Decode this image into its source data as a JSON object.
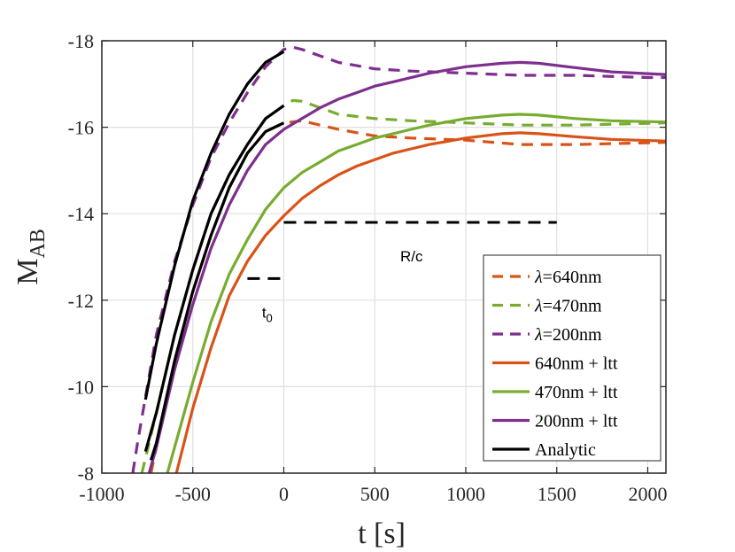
{
  "chart_data": {
    "type": "line",
    "xlabel": "t [s]",
    "ylabel_main": "M",
    "ylabel_sub": "AB",
    "xlim": [
      -1000,
      2100
    ],
    "ylim": [
      -18,
      -8
    ],
    "y_reversed": true,
    "grid": true,
    "x_ticks": [
      -1000,
      -500,
      0,
      500,
      1000,
      1500,
      2000
    ],
    "y_ticks": [
      -18,
      -16,
      -14,
      -12,
      -10,
      -8
    ],
    "x_tick_labels": [
      "-1000",
      "-500",
      "0",
      "500",
      "1000",
      "1500",
      "2000"
    ],
    "y_tick_labels": [
      "-18",
      "-16",
      "-14",
      "-12",
      "-10",
      "-8"
    ],
    "colors": {
      "orange": "#d95319",
      "green": "#77ac30",
      "purple": "#7e2f8e",
      "black": "#000000",
      "grid": "#e0e0e0",
      "axis": "#262626"
    },
    "series": [
      {
        "name": "λ=640nm",
        "legend_prefix": "λ",
        "legend_rest": "=640nm",
        "color": "#d95319",
        "style": "dashed",
        "x": [
          -730,
          -700,
          -600,
          -500,
          -400,
          -300,
          -200,
          -100,
          0,
          100,
          200,
          300,
          500,
          700,
          1000,
          1300,
          1600,
          2100
        ],
        "y": [
          -8,
          -8.6,
          -10.6,
          -12.2,
          -13.5,
          -14.6,
          -15.4,
          -15.9,
          -16.1,
          -16.15,
          -16.05,
          -15.95,
          -15.8,
          -15.75,
          -15.7,
          -15.6,
          -15.6,
          -15.65
        ]
      },
      {
        "name": "λ=470nm",
        "legend_prefix": "λ",
        "legend_rest": "=470nm",
        "color": "#77ac30",
        "style": "dashed",
        "x": [
          -780,
          -700,
          -600,
          -500,
          -400,
          -300,
          -200,
          -100,
          0,
          50,
          100,
          200,
          300,
          500,
          700,
          1000,
          1300,
          1600,
          2100
        ],
        "y": [
          -8,
          -9.4,
          -11.2,
          -12.7,
          -14.0,
          -14.9,
          -15.6,
          -16.2,
          -16.5,
          -16.62,
          -16.6,
          -16.45,
          -16.3,
          -16.2,
          -16.15,
          -16.1,
          -16.05,
          -16.05,
          -16.1
        ]
      },
      {
        "name": "λ=200nm",
        "legend_prefix": "λ",
        "legend_rest": "=200nm",
        "color": "#7e2f8e",
        "style": "dashed",
        "x": [
          -830,
          -800,
          -700,
          -600,
          -500,
          -400,
          -300,
          -200,
          -100,
          0,
          50,
          100,
          200,
          300,
          500,
          700,
          1000,
          1300,
          1600,
          2000,
          2100
        ],
        "y": [
          -8,
          -8.8,
          -11.2,
          -12.9,
          -14.2,
          -15.3,
          -16.1,
          -16.8,
          -17.4,
          -17.8,
          -17.85,
          -17.8,
          -17.65,
          -17.5,
          -17.35,
          -17.3,
          -17.25,
          -17.2,
          -17.2,
          -17.15,
          -17.15
        ]
      },
      {
        "name": "640nm + ltt",
        "legend_prefix": "",
        "legend_rest": "640nm + ltt",
        "color": "#d95319",
        "style": "solid",
        "x": [
          -590,
          -500,
          -400,
          -300,
          -200,
          -100,
          0,
          100,
          200,
          300,
          400,
          500,
          600,
          700,
          800,
          1000,
          1200,
          1300,
          1400,
          1600,
          1800,
          2100
        ],
        "y": [
          -8,
          -9.5,
          -10.9,
          -12.1,
          -12.9,
          -13.5,
          -13.95,
          -14.35,
          -14.65,
          -14.9,
          -15.1,
          -15.25,
          -15.4,
          -15.5,
          -15.6,
          -15.75,
          -15.85,
          -15.87,
          -15.85,
          -15.78,
          -15.72,
          -15.68
        ]
      },
      {
        "name": "470nm + ltt",
        "legend_prefix": "",
        "legend_rest": "470nm + ltt",
        "color": "#77ac30",
        "style": "solid",
        "x": [
          -640,
          -600,
          -500,
          -400,
          -300,
          -200,
          -100,
          0,
          100,
          200,
          300,
          400,
          500,
          600,
          700,
          800,
          1000,
          1200,
          1300,
          1400,
          1600,
          1800,
          2100
        ],
        "y": [
          -8,
          -8.6,
          -10.1,
          -11.5,
          -12.6,
          -13.4,
          -14.1,
          -14.6,
          -14.95,
          -15.2,
          -15.45,
          -15.6,
          -15.75,
          -15.85,
          -15.95,
          -16.05,
          -16.2,
          -16.28,
          -16.3,
          -16.28,
          -16.2,
          -16.15,
          -16.12
        ]
      },
      {
        "name": "200nm + ltt",
        "legend_prefix": "",
        "legend_rest": "200nm + ltt",
        "color": "#7e2f8e",
        "style": "solid",
        "x": [
          -740,
          -700,
          -600,
          -500,
          -400,
          -300,
          -200,
          -100,
          0,
          100,
          200,
          300,
          400,
          500,
          600,
          800,
          1000,
          1200,
          1300,
          1400,
          1600,
          1800,
          2100
        ],
        "y": [
          -8,
          -8.6,
          -10.4,
          -11.9,
          -13.2,
          -14.2,
          -15.0,
          -15.6,
          -15.95,
          -16.2,
          -16.45,
          -16.65,
          -16.8,
          -16.95,
          -17.05,
          -17.25,
          -17.4,
          -17.48,
          -17.5,
          -17.48,
          -17.38,
          -17.28,
          -17.22
        ]
      },
      {
        "name": "Analytic",
        "legend_prefix": "",
        "legend_rest": "Analytic",
        "color": "#000000",
        "style": "solid",
        "group": [
          {
            "x": [
              -730,
              -700,
              -600,
              -500,
              -400,
              -300,
              -200,
              -100,
              0
            ],
            "y": [
              -8.3,
              -8.7,
              -10.6,
              -12.2,
              -13.5,
              -14.6,
              -15.4,
              -15.9,
              -16.1
            ]
          },
          {
            "x": [
              -760,
              -700,
              -600,
              -500,
              -400,
              -300,
              -200,
              -100,
              0
            ],
            "y": [
              -8.5,
              -9.4,
              -11.2,
              -12.7,
              -14.0,
              -14.9,
              -15.6,
              -16.2,
              -16.5
            ]
          },
          {
            "x": [
              -760,
              -700,
              -600,
              -500,
              -400,
              -300,
              -200,
              -100,
              0
            ],
            "y": [
              -9.7,
              -11.0,
              -12.8,
              -14.3,
              -15.4,
              -16.3,
              -17.0,
              -17.5,
              -17.75
            ]
          }
        ]
      }
    ],
    "annotations": [
      {
        "label": "R/c",
        "x_range": [
          0,
          1500
        ],
        "y": -13.8,
        "label_pos": [
          640,
          -12.9
        ]
      },
      {
        "label_main": "t",
        "label_sub": "0",
        "x_range": [
          -200,
          0
        ],
        "y": -12.5,
        "label_pos": [
          -120,
          -11.6
        ]
      }
    ],
    "legend": {
      "position": "bottom-right"
    }
  }
}
